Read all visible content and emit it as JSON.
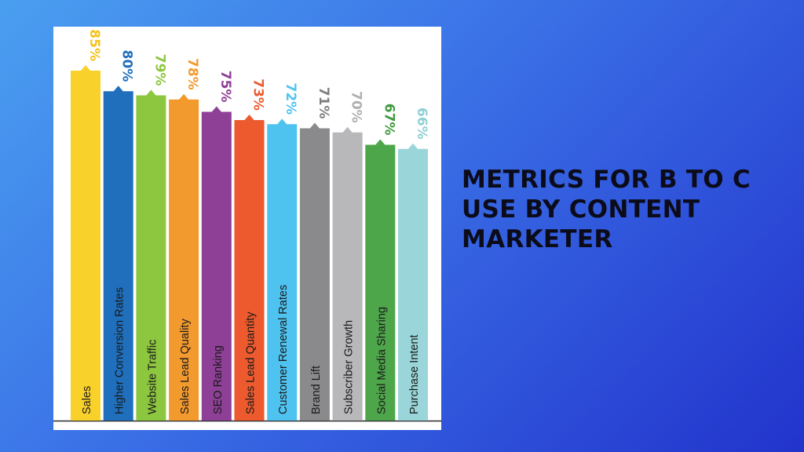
{
  "slide": {
    "title_lines": [
      "METRICS FOR B TO C",
      "USE BY CONTENT",
      "MARKETER"
    ]
  },
  "chart_data": {
    "type": "bar",
    "title": "",
    "xlabel": "",
    "ylabel": "",
    "ylim": [
      0,
      100
    ],
    "categories": [
      "Sales",
      "Higher Conversion Rates",
      "Website Traffic",
      "Sales Lead Quality",
      "SEO Ranking",
      "Sales Lead Quantity",
      "Customer Renewal Rates",
      "Brand Lift",
      "Subscriber Growth",
      "Social Media Sharing",
      "Purchase Intent"
    ],
    "values": [
      85,
      80,
      79,
      78,
      75,
      73,
      72,
      71,
      70,
      67,
      66
    ],
    "value_labels": [
      "85%",
      "80%",
      "79%",
      "78%",
      "75%",
      "73%",
      "72%",
      "71%",
      "70%",
      "67%",
      "66%"
    ],
    "colors": [
      "#f9d12b",
      "#1f6fbd",
      "#8dc63f",
      "#f39a2e",
      "#8e3f96",
      "#ec5a2e",
      "#4fc3f0",
      "#8a8a8c",
      "#b8b8ba",
      "#4ea64a",
      "#9ad6d9"
    ],
    "label_colors": [
      "#f6c21a",
      "#1f6fbd",
      "#8dc63f",
      "#f39a2e",
      "#8e3f96",
      "#ec5a2e",
      "#4fc3f0",
      "#7e7e80",
      "#b0b0b2",
      "#3f9a3c",
      "#8fd0d4"
    ],
    "grid": false,
    "legend": "none"
  }
}
